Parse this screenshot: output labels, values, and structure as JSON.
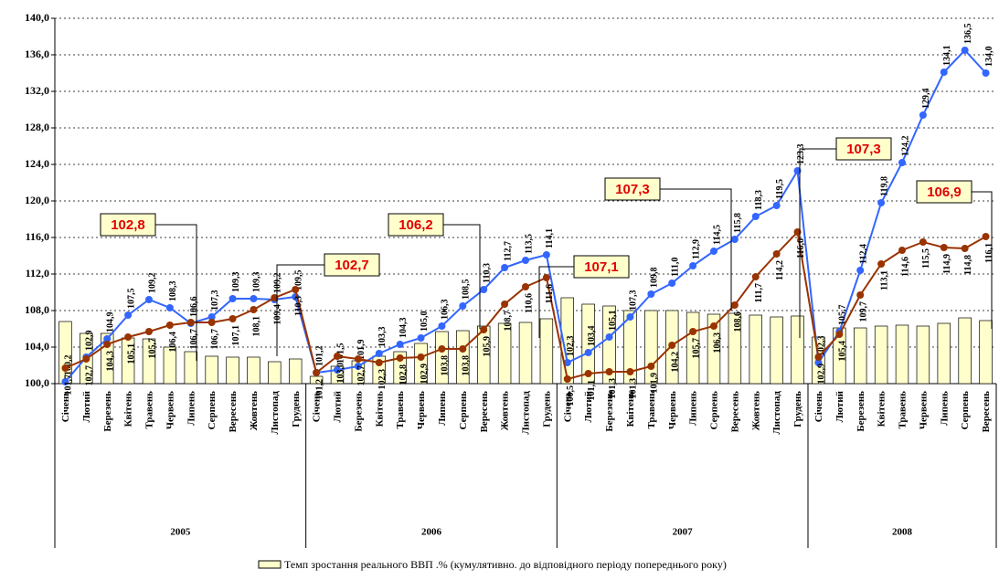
{
  "chart_data": {
    "type": "bar_line",
    "categories": [
      "Січень",
      "Лютий",
      "Березень",
      "Квітень",
      "Травень",
      "Червень",
      "Липень",
      "Серпень",
      "Вересень",
      "Жовтень",
      "Листопад",
      "Грудень",
      "Січень",
      "Лютий",
      "Березень",
      "Квітень",
      "Травень",
      "Червень",
      "Липень",
      "Серпень",
      "Вересень",
      "Жовтень",
      "Листопад",
      "Грудень",
      "Січень",
      "Лютий",
      "Березень",
      "Квітень",
      "Травень",
      "Червень",
      "Липень",
      "Серпень",
      "Вересень",
      "Жовтень",
      "Листопад",
      "Грудень",
      "Січень",
      "Лютий",
      "Березень",
      "Квітень",
      "Травень",
      "Червень",
      "Липень",
      "Серпень",
      "Вересень"
    ],
    "years": [
      "2005",
      "2006",
      "2007",
      "2008"
    ],
    "ylim": [
      100,
      140
    ],
    "yticks": [
      {
        "value": 100,
        "label": "100,0"
      },
      {
        "value": 104,
        "label": "104,0"
      },
      {
        "value": 108,
        "label": "108,0"
      },
      {
        "value": 112,
        "label": "112,0"
      },
      {
        "value": 116,
        "label": "116,0"
      },
      {
        "value": 120,
        "label": "120,0"
      },
      {
        "value": 124,
        "label": "124,0"
      },
      {
        "value": 128,
        "label": "128,0"
      },
      {
        "value": 132,
        "label": "132,0"
      },
      {
        "value": 136,
        "label": "136,0"
      },
      {
        "value": 140,
        "label": "140,0"
      }
    ],
    "grid": true,
    "series": [
      {
        "name": "Темп зростання реального ВВП .% (кумулятивно. до відповідного періоду попереднього року)",
        "kind": "bar",
        "color": "#ffffcc",
        "values": [
          106.8,
          105.5,
          105.5,
          105.0,
          104.9,
          104.0,
          103.5,
          103.0,
          102.9,
          102.9,
          102.4,
          102.7,
          100.8,
          101.9,
          102.5,
          103.0,
          103.5,
          104.4,
          105.7,
          105.8,
          106.3,
          106.6,
          106.7,
          107.1,
          109.4,
          108.7,
          108.5,
          108.0,
          108.0,
          108.0,
          107.8,
          107.6,
          107.7,
          107.5,
          107.3,
          107.4,
          105.1,
          106.1,
          106.1,
          106.3,
          106.4,
          106.3,
          106.6,
          107.2,
          106.9
        ]
      },
      {
        "kind": "line",
        "color": "#3366ff",
        "label_side": "above",
        "values": [
          100.2,
          102.9,
          104.9,
          107.5,
          109.2,
          108.3,
          106.6,
          107.3,
          109.3,
          109.3,
          109.2,
          109.5,
          101.2,
          101.5,
          101.9,
          103.3,
          104.3,
          105.0,
          106.3,
          108.5,
          110.3,
          112.7,
          113.5,
          114.1,
          102.3,
          103.4,
          105.1,
          107.3,
          109.8,
          111.0,
          112.9,
          114.5,
          115.8,
          118.3,
          119.5,
          123.3,
          102.3,
          105.7,
          112.4,
          119.8,
          124.2,
          129.4,
          134.1,
          136.5,
          134.0
        ],
        "value_labels": [
          "100,2",
          "102,9",
          "104,9",
          "107,5",
          "109,2",
          "108,3",
          "106,6",
          "107,3",
          "109,3",
          "109,3",
          "109,2",
          "109,5",
          "101,2",
          "101,5",
          "101,9",
          "103,3",
          "104,3",
          "105,0",
          "106,3",
          "108,5",
          "110,3",
          "112,7",
          "113,5",
          "114,1",
          "102,3",
          "103,4",
          "105,1",
          "107,3",
          "109,8",
          "111,0",
          "112,9",
          "114,5",
          "115,8",
          "118,3",
          "119,5",
          "123,3",
          "102,3",
          "105,7",
          "112,4",
          "119,8",
          "124,2",
          "129,4",
          "134,1",
          "136,5",
          "134,0"
        ]
      },
      {
        "kind": "line",
        "color": "#993300",
        "label_side": "below",
        "values": [
          101.7,
          102.7,
          104.3,
          105.1,
          105.7,
          106.4,
          106.7,
          106.7,
          107.1,
          108.1,
          109.4,
          110.3,
          101.2,
          103.0,
          102.7,
          102.3,
          102.8,
          102.9,
          103.8,
          103.8,
          105.9,
          108.7,
          110.6,
          111.6,
          100.5,
          101.1,
          101.3,
          101.3,
          101.9,
          104.2,
          105.7,
          106.3,
          108.6,
          111.7,
          114.2,
          116.6,
          102.9,
          105.4,
          109.7,
          113.1,
          114.6,
          115.5,
          114.9,
          114.8,
          116.1
        ],
        "value_labels": [
          "101,7",
          "102,7",
          "104,3",
          "105,1",
          "105,7",
          "106,4",
          "106,7",
          "106,7",
          "107,1",
          "108,1",
          "109,4",
          "110,3",
          "101,2",
          "103,0",
          "102,7",
          "102,3",
          "102,8",
          "102,9",
          "103,8",
          "103,8",
          "105,9",
          "108,7",
          "110,6",
          "111,6",
          "100,5",
          "101,1",
          "101,3",
          "101,3",
          "101,9",
          "104,2",
          "105,7",
          "106,3",
          "108,6",
          "111,7",
          "114,2",
          "116,6",
          "102,9",
          "105,4",
          "109,7",
          "113,1",
          "114,6",
          "115,5",
          "114,9",
          "114,8",
          "116,1"
        ]
      }
    ],
    "annotations": [
      "102,8",
      "102,7",
      "106,2",
      "107,1",
      "107,3",
      "107,3",
      "106,9"
    ]
  }
}
